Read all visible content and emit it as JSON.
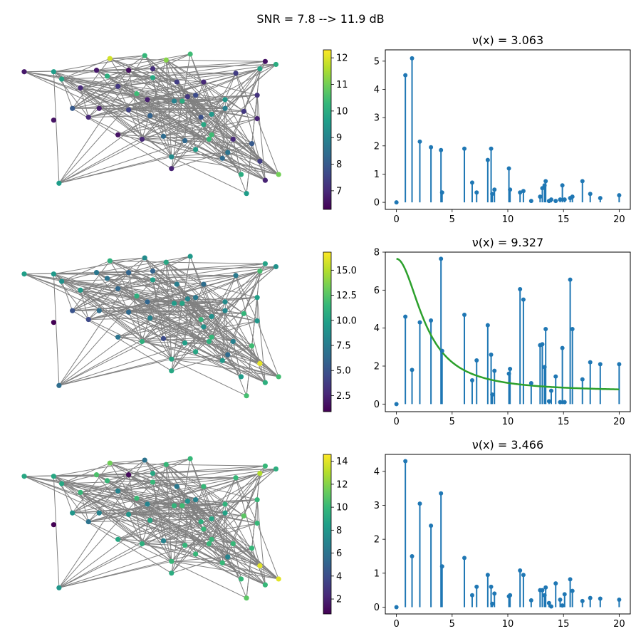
{
  "figure": {
    "suptitle": "SNR = 7.8 --> 11.9 dB"
  },
  "palette": {
    "edge": "#808080",
    "stem": "#1f77b4",
    "curve": "#2ca02c",
    "axis": "#000000"
  },
  "colormap_stops": [
    "#440154",
    "#482878",
    "#3e4989",
    "#31688e",
    "#26828e",
    "#1f9e89",
    "#35b779",
    "#6ece58",
    "#b5de2b",
    "#fde725"
  ],
  "graph": {
    "nodes": [
      [
        0.0,
        0.88
      ],
      [
        0.13,
        0.12
      ],
      [
        0.24,
        0.57
      ],
      [
        0.32,
        0.97
      ],
      [
        0.45,
        0.99
      ],
      [
        0.53,
        0.96
      ],
      [
        0.62,
        1.0
      ],
      [
        0.9,
        0.95
      ],
      [
        0.94,
        0.93
      ],
      [
        0.11,
        0.88
      ],
      [
        0.27,
        0.89
      ],
      [
        0.14,
        0.83
      ],
      [
        0.31,
        0.85
      ],
      [
        0.39,
        0.89
      ],
      [
        0.48,
        0.84
      ],
      [
        0.57,
        0.81
      ],
      [
        0.67,
        0.81
      ],
      [
        0.79,
        0.87
      ],
      [
        0.88,
        0.9
      ],
      [
        0.21,
        0.77
      ],
      [
        0.35,
        0.78
      ],
      [
        0.42,
        0.73
      ],
      [
        0.56,
        0.68
      ],
      [
        0.64,
        0.72
      ],
      [
        0.75,
        0.69
      ],
      [
        0.87,
        0.72
      ],
      [
        0.18,
        0.63
      ],
      [
        0.28,
        0.63
      ],
      [
        0.47,
        0.58
      ],
      [
        0.66,
        0.57
      ],
      [
        0.75,
        0.63
      ],
      [
        0.87,
        0.56
      ],
      [
        0.6,
        0.41
      ],
      [
        0.7,
        0.45
      ],
      [
        0.78,
        0.42
      ],
      [
        0.85,
        0.39
      ],
      [
        0.44,
        0.42
      ],
      [
        0.52,
        0.44
      ],
      [
        0.64,
        0.35
      ],
      [
        0.74,
        0.29
      ],
      [
        0.88,
        0.27
      ],
      [
        0.35,
        0.45
      ],
      [
        0.81,
        0.18
      ],
      [
        0.9,
        0.14
      ],
      [
        0.95,
        0.18
      ],
      [
        0.55,
        0.22
      ],
      [
        0.83,
        0.05
      ],
      [
        0.61,
        0.71
      ],
      [
        0.46,
        0.69
      ],
      [
        0.39,
        0.62
      ],
      [
        0.7,
        0.59
      ],
      [
        0.69,
        0.42
      ],
      [
        0.59,
        0.68
      ],
      [
        0.48,
        0.9
      ],
      [
        0.76,
        0.33
      ],
      [
        0.55,
        0.3
      ],
      [
        0.67,
        0.52
      ],
      [
        0.82,
        0.61
      ]
    ],
    "isolated": [
      0.11,
      0.55
    ],
    "edge_seed": 42,
    "edge_count": 250
  },
  "panels": [
    {
      "colorbar": {
        "min": 6.3,
        "max": 12.3,
        "ticks": [
          7,
          8,
          9,
          10,
          11,
          12
        ]
      },
      "node_values": [
        6.7,
        9.6,
        7.0,
        11.9,
        10.3,
        11.2,
        10.4,
        6.6,
        10.0,
        9.6,
        6.7,
        9.8,
        10.1,
        6.5,
        9.9,
        7.4,
        7.0,
        7.4,
        9.8,
        7.0,
        7.3,
        10.4,
        9.0,
        7.7,
        9.5,
        7.2,
        8.0,
        6.8,
        8.2,
        7.8,
        8.9,
        6.9,
        8.3,
        10.4,
        7.0,
        8.0,
        7.0,
        8.4,
        9.6,
        8.4,
        7.4,
        6.6,
        10.0,
        6.9,
        11.0,
        6.9,
        9.6,
        7.3,
        6.8,
        7.5,
        9.5,
        10.3,
        10.0,
        7.1,
        8.6,
        9.2,
        9.9,
        7.3
      ],
      "isolated_value": 6.6,
      "spectrum": {
        "title": "ν(x) = 3.063",
        "xlim": [
          -1,
          21
        ],
        "ylim": [
          -0.25,
          5.4
        ],
        "xticks": [
          0,
          5,
          10,
          15,
          20
        ],
        "yticks": [
          0,
          1,
          2,
          3,
          4,
          5
        ],
        "x": [
          0.0,
          0.8,
          1.4,
          2.1,
          3.1,
          4.0,
          4.1,
          6.1,
          6.8,
          7.2,
          8.2,
          8.5,
          8.6,
          8.8,
          10.1,
          10.2,
          11.1,
          11.4,
          12.1,
          12.9,
          13.1,
          13.3,
          13.4,
          13.7,
          13.9,
          14.3,
          14.7,
          14.9,
          15.1,
          15.6,
          15.8,
          16.7,
          17.4,
          18.3,
          20.0
        ],
        "y": [
          0.0,
          4.5,
          5.1,
          2.15,
          1.95,
          1.85,
          0.35,
          1.9,
          0.7,
          0.35,
          1.5,
          1.9,
          0.3,
          0.45,
          1.2,
          0.45,
          0.35,
          0.4,
          0.05,
          0.2,
          0.5,
          0.6,
          0.75,
          0.05,
          0.1,
          0.05,
          0.1,
          0.6,
          0.1,
          0.15,
          0.2,
          0.75,
          0.3,
          0.15,
          0.25
        ]
      }
    },
    {
      "colorbar": {
        "min": 0.9,
        "max": 16.8,
        "ticks": [
          2.5,
          5.0,
          7.5,
          10.0,
          12.5,
          15.0
        ]
      },
      "node_values": [
        9.8,
        6.6,
        4.5,
        11.0,
        8.6,
        10.4,
        9.4,
        10.1,
        9.0,
        9.5,
        7.3,
        9.0,
        7.0,
        6.1,
        9.9,
        7.7,
        6.6,
        7.4,
        12.0,
        9.6,
        6.3,
        10.9,
        9.6,
        7.3,
        8.6,
        9.8,
        5.0,
        6.7,
        8.0,
        11.3,
        8.4,
        9.3,
        9.8,
        11.5,
        7.8,
        11.8,
        11.0,
        4.6,
        10.3,
        9.4,
        16.2,
        7.0,
        9.6,
        10.9,
        11.9,
        10.4,
        12.0,
        8.2,
        6.1,
        6.4,
        8.9,
        11.0,
        10.2,
        6.0,
        6.5,
        10.3,
        8.9,
        11.4
      ],
      "isolated_value": 0.9,
      "spectrum": {
        "title": "ν(x) = 9.327",
        "xlim": [
          -1,
          21
        ],
        "ylim": [
          -0.4,
          8.0
        ],
        "xticks": [
          0,
          5,
          10,
          15,
          20
        ],
        "yticks": [
          0,
          2,
          4,
          6,
          8
        ],
        "x": [
          0.0,
          0.8,
          1.4,
          2.1,
          3.1,
          4.0,
          4.1,
          6.1,
          6.8,
          7.2,
          8.2,
          8.5,
          8.6,
          8.8,
          10.1,
          10.2,
          11.1,
          11.4,
          12.1,
          12.9,
          13.1,
          13.3,
          13.4,
          13.7,
          13.9,
          14.3,
          14.7,
          14.9,
          15.1,
          15.6,
          15.8,
          16.7,
          17.4,
          18.3,
          20.0
        ],
        "y": [
          0.0,
          4.6,
          1.8,
          4.3,
          4.4,
          7.65,
          2.8,
          4.7,
          1.25,
          2.3,
          4.15,
          2.6,
          0.5,
          1.75,
          1.6,
          1.85,
          6.05,
          5.5,
          1.1,
          3.1,
          3.15,
          1.95,
          3.95,
          0.15,
          0.7,
          1.45,
          0.1,
          2.95,
          0.1,
          6.55,
          3.95,
          1.3,
          2.2,
          2.1,
          2.1
        ],
        "curve": {
          "peak": 7.65,
          "floor": 0.65,
          "scale": 2.67,
          "x0": 0,
          "x1": 20
        }
      }
    },
    {
      "colorbar": {
        "min": 0.7,
        "max": 14.6,
        "ticks": [
          2,
          4,
          6,
          8,
          10,
          12,
          14
        ]
      },
      "node_values": [
        9.0,
        8.0,
        6.0,
        11.5,
        6.0,
        10.0,
        10.0,
        10.0,
        9.4,
        9.0,
        10.6,
        9.0,
        10.0,
        1.0,
        10.0,
        6.3,
        10.0,
        10.0,
        13.0,
        10.0,
        7.0,
        10.1,
        9.8,
        7.0,
        9.7,
        10.0,
        8.0,
        7.0,
        9.0,
        9.5,
        8.7,
        10.0,
        9.9,
        10.0,
        10.0,
        10.0,
        9.5,
        7.0,
        10.0,
        10.0,
        14.0,
        9.0,
        10.0,
        10.0,
        14.0,
        9.3,
        11.0,
        7.9,
        7.0,
        8.0,
        8.9,
        10.0,
        10.2,
        9.0,
        7.0,
        10.0,
        10.0,
        11.0
      ],
      "isolated_value": 0.7,
      "spectrum": {
        "title": "ν(x) = 3.466",
        "xlim": [
          -1,
          21
        ],
        "ylim": [
          -0.2,
          4.5
        ],
        "xticks": [
          0,
          5,
          10,
          15,
          20
        ],
        "yticks": [
          0,
          1,
          2,
          3,
          4
        ],
        "x": [
          0.0,
          0.8,
          1.4,
          2.1,
          3.1,
          4.0,
          4.1,
          6.1,
          6.8,
          7.2,
          8.2,
          8.5,
          8.6,
          8.8,
          10.1,
          10.2,
          11.1,
          11.4,
          12.1,
          12.9,
          13.1,
          13.3,
          13.4,
          13.7,
          13.9,
          14.3,
          14.7,
          14.9,
          15.1,
          15.6,
          15.8,
          16.7,
          17.4,
          18.3,
          20.0
        ],
        "y": [
          0.0,
          4.3,
          1.5,
          3.05,
          2.4,
          3.35,
          1.2,
          1.45,
          0.35,
          0.6,
          0.95,
          0.6,
          0.1,
          0.4,
          0.32,
          0.35,
          1.08,
          0.95,
          0.2,
          0.5,
          0.5,
          0.35,
          0.58,
          0.12,
          0.02,
          0.7,
          0.22,
          0.05,
          0.38,
          0.82,
          0.48,
          0.18,
          0.27,
          0.25,
          0.22
        ]
      }
    }
  ],
  "chart_data": {
    "type": "multi-panel",
    "title": "SNR = 7.8 --> 11.9 dB",
    "panels": [
      {
        "type": "scatter",
        "title": "ν(x) = 3.063",
        "ylim": [
          -0.25,
          5.4
        ]
      },
      {
        "type": "scatter",
        "title": "ν(x) = 9.327",
        "ylim": [
          -0.4,
          8.0
        ]
      },
      {
        "type": "scatter",
        "title": "ν(x) = 3.466",
        "ylim": [
          -0.2,
          4.5
        ]
      }
    ]
  }
}
